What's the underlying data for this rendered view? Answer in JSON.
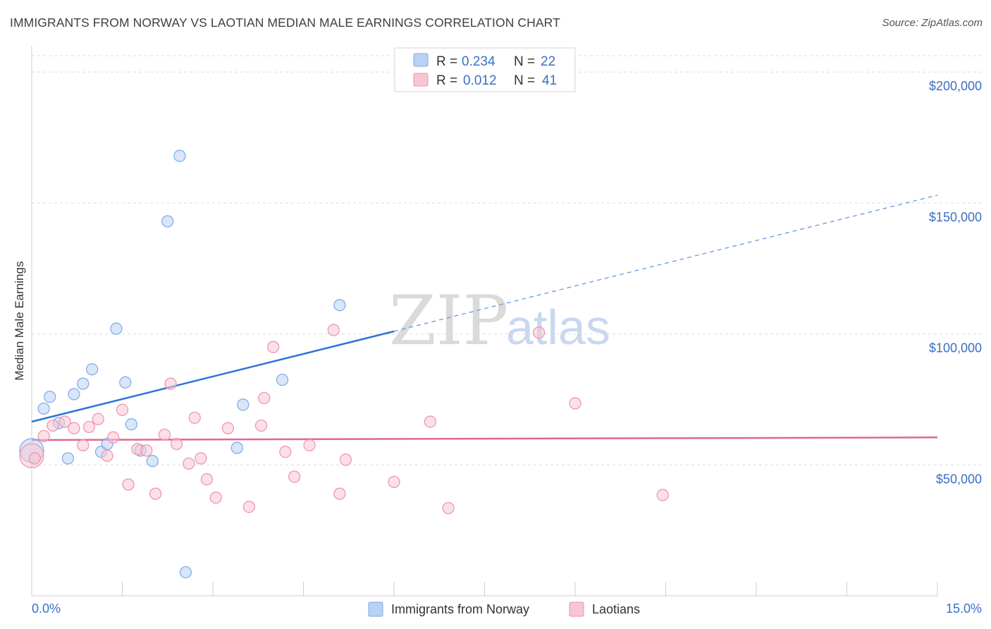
{
  "title": "IMMIGRANTS FROM NORWAY VS LAOTIAN MEDIAN MALE EARNINGS CORRELATION CHART",
  "source": "Source: ZipAtlas.com",
  "watermark": {
    "part1": "ZIP",
    "part2": "atlas"
  },
  "legend": {
    "rows": [
      {
        "r_label": "R =",
        "r_value": "0.234",
        "n_label": "N =",
        "n_value": "22"
      },
      {
        "r_label": "R =",
        "r_value": "0.012",
        "n_label": "N =",
        "n_value": "41"
      }
    ]
  },
  "chart_data": {
    "type": "scatter",
    "title": "IMMIGRANTS FROM NORWAY VS LAOTIAN MEDIAN MALE EARNINGS CORRELATION CHART",
    "xlabel": "",
    "ylabel": "Median Male Earnings",
    "xlim": [
      0,
      15
    ],
    "ylim": [
      0,
      210000
    ],
    "x_tick_labels": [
      "0.0%",
      "15.0%"
    ],
    "y_ticks": [
      50000,
      100000,
      150000,
      200000
    ],
    "y_tick_labels": [
      "$50,000",
      "$100,000",
      "$150,000",
      "$200,000"
    ],
    "grid": true,
    "legend_position": "top-center",
    "series": [
      {
        "name": "Immigrants from Norway",
        "color": "#7aaae8",
        "fill": "#b9d2f3",
        "r": 0.234,
        "n": 22,
        "points": [
          [
            0.0,
            55500
          ],
          [
            0.2,
            71500
          ],
          [
            0.3,
            76000
          ],
          [
            0.45,
            66000
          ],
          [
            0.6,
            52500
          ],
          [
            0.7,
            77000
          ],
          [
            0.85,
            81000
          ],
          [
            1.0,
            86500
          ],
          [
            1.15,
            55000
          ],
          [
            1.25,
            58000
          ],
          [
            1.4,
            102000
          ],
          [
            1.55,
            81500
          ],
          [
            1.65,
            65500
          ],
          [
            1.8,
            55500
          ],
          [
            2.0,
            51500
          ],
          [
            2.25,
            143000
          ],
          [
            2.45,
            168000
          ],
          [
            2.55,
            9000
          ],
          [
            3.5,
            73000
          ],
          [
            3.4,
            56500
          ],
          [
            4.15,
            82500
          ],
          [
            5.1,
            111000
          ]
        ],
        "trend": {
          "x0": 0.0,
          "y0": 66500,
          "x1": 6.0,
          "y1": 101000,
          "dashed_to_x": 15.0,
          "dashed_to_y": 153000
        }
      },
      {
        "name": "Laotians",
        "color": "#f08fae",
        "fill": "#f7c6d6",
        "r": 0.012,
        "n": 41,
        "points": [
          [
            0.0,
            53500
          ],
          [
            0.2,
            61000
          ],
          [
            0.35,
            65000
          ],
          [
            0.55,
            66500
          ],
          [
            0.7,
            64000
          ],
          [
            0.85,
            57500
          ],
          [
            0.95,
            64500
          ],
          [
            1.1,
            67500
          ],
          [
            1.25,
            53500
          ],
          [
            1.35,
            60500
          ],
          [
            1.5,
            71000
          ],
          [
            1.6,
            42500
          ],
          [
            1.75,
            56000
          ],
          [
            1.9,
            55500
          ],
          [
            2.05,
            39000
          ],
          [
            2.2,
            61500
          ],
          [
            2.3,
            81000
          ],
          [
            2.4,
            58000
          ],
          [
            2.6,
            50500
          ],
          [
            2.7,
            68000
          ],
          [
            2.8,
            52500
          ],
          [
            2.9,
            44500
          ],
          [
            3.05,
            37500
          ],
          [
            3.25,
            64000
          ],
          [
            3.6,
            34000
          ],
          [
            3.8,
            65000
          ],
          [
            3.85,
            75500
          ],
          [
            4.0,
            95000
          ],
          [
            4.2,
            55000
          ],
          [
            4.35,
            45500
          ],
          [
            4.6,
            57500
          ],
          [
            5.0,
            101500
          ],
          [
            5.1,
            39000
          ],
          [
            5.2,
            52000
          ],
          [
            6.0,
            43500
          ],
          [
            6.6,
            66500
          ],
          [
            6.9,
            33500
          ],
          [
            8.4,
            100500
          ],
          [
            9.0,
            73500
          ],
          [
            10.45,
            38500
          ],
          [
            0.05,
            52500
          ]
        ],
        "trend": {
          "x0": 0.0,
          "y0": 59500,
          "x1": 15.0,
          "y1": 60500
        }
      }
    ]
  },
  "bottom_legend": [
    {
      "label": "Immigrants from Norway"
    },
    {
      "label": "Laotians"
    }
  ]
}
